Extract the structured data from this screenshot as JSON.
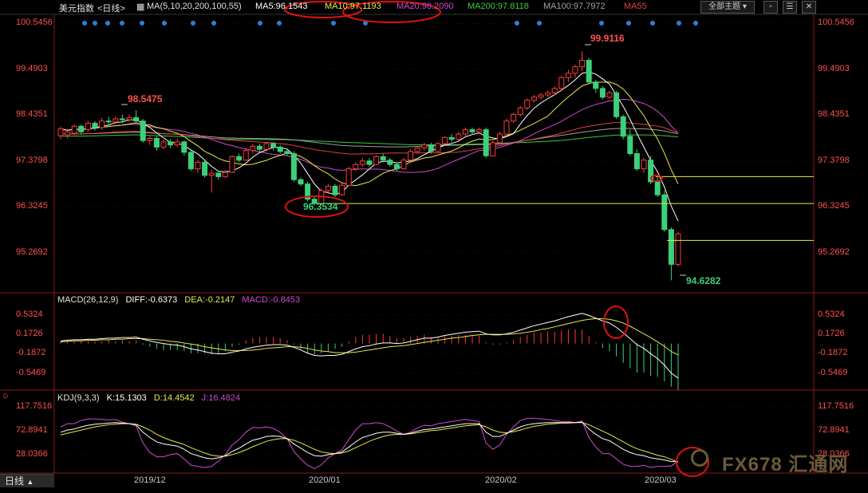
{
  "toolbar": {
    "symbol": "美元指数",
    "period": "<日线>",
    "ma_prefix": "MA(5,10,20,200,100,55)",
    "ma5": "MA5:96.1543",
    "ma10": "MA10:97.1193",
    "ma20": "MA20:98.2090",
    "ma200": "MA200:97.8118",
    "ma100": "MA100:97.7972",
    "ma55": "MA55",
    "dropdown": "全部主题",
    "colors": {
      "ma5": "#ffffff",
      "ma10": "#e8e84a",
      "ma20": "#d04ad0",
      "ma200": "#3cc83c",
      "ma100": "#a0a0a0",
      "ma55": "#e04040"
    }
  },
  "macd_header": {
    "name": "MACD(26,12,9)",
    "diff": "DIFF:-0.6373",
    "dea": "DEA:-0.2147",
    "macd": "MACD:-0.8453"
  },
  "kdj_header": {
    "name": "KDJ(9,3,3)",
    "k": "K:15.1303",
    "d": "D:14.4542",
    "j": "J:16.4824"
  },
  "price_axis": [
    "100.5456",
    "99.4903",
    "98.4351",
    "97.3798",
    "96.3245",
    "95.2692"
  ],
  "macd_axis": [
    "0.5324",
    "0.1726",
    "-0.1872",
    "-0.5469"
  ],
  "kdj_axis": [
    "117.7516",
    "72.8941",
    "28.0366"
  ],
  "x_labels": [
    "2019/12",
    "2020/01",
    "2020/02",
    "2020/03"
  ],
  "annotations": {
    "high1": "98.5475",
    "low1": "96.3534",
    "high2": "99.9116",
    "low2": "94.6282"
  },
  "bottom_button": "日线",
  "watermark": "FX678 汇通网",
  "chart_data": {
    "type": "candlestick",
    "title": "美元指数",
    "ylim": [
      94.4,
      100.72
    ],
    "candles": [
      [
        97.96,
        98.12,
        97.88,
        98.18
      ],
      [
        97.98,
        98.05,
        97.9,
        98.12
      ],
      [
        98.02,
        98.18,
        97.98,
        98.22
      ],
      [
        98.18,
        98.05,
        97.98,
        98.22
      ],
      [
        98.1,
        98.25,
        98.05,
        98.3
      ],
      [
        98.25,
        98.15,
        98.08,
        98.3
      ],
      [
        98.15,
        98.3,
        98.1,
        98.38
      ],
      [
        98.3,
        98.28,
        98.2,
        98.4
      ],
      [
        98.28,
        98.35,
        98.22,
        98.4
      ],
      [
        98.35,
        98.33,
        98.25,
        98.45
      ],
      [
        98.33,
        98.38,
        98.28,
        98.45
      ],
      [
        98.38,
        98.3,
        98.25,
        98.55
      ],
      [
        98.3,
        97.85,
        97.8,
        98.35
      ],
      [
        97.85,
        97.9,
        97.75,
        97.95
      ],
      [
        97.9,
        97.7,
        97.62,
        97.95
      ],
      [
        97.7,
        97.82,
        97.65,
        97.88
      ],
      [
        97.82,
        97.75,
        97.68,
        97.88
      ],
      [
        97.75,
        97.82,
        97.7,
        97.9
      ],
      [
        97.82,
        97.58,
        97.5,
        97.85
      ],
      [
        97.58,
        97.2,
        97.15,
        97.62
      ],
      [
        97.2,
        97.35,
        97.1,
        97.4
      ],
      [
        97.35,
        97.05,
        97.0,
        97.4
      ],
      [
        97.05,
        97.1,
        96.65,
        97.18
      ],
      [
        97.1,
        97.02,
        96.95,
        97.15
      ],
      [
        97.02,
        97.12,
        96.98,
        97.18
      ],
      [
        97.12,
        97.48,
        97.1,
        97.52
      ],
      [
        97.48,
        97.4,
        97.35,
        97.55
      ],
      [
        97.4,
        97.62,
        97.38,
        97.68
      ],
      [
        97.62,
        97.72,
        97.55,
        97.78
      ],
      [
        97.72,
        97.65,
        97.6,
        97.78
      ],
      [
        97.65,
        97.78,
        97.6,
        97.82
      ],
      [
        97.78,
        97.7,
        97.62,
        97.82
      ],
      [
        97.7,
        97.6,
        97.55,
        97.75
      ],
      [
        97.6,
        97.55,
        97.5,
        97.65
      ],
      [
        97.55,
        96.95,
        96.9,
        97.6
      ],
      [
        96.95,
        96.85,
        96.8,
        97.0
      ],
      [
        96.85,
        96.5,
        96.45,
        96.9
      ],
      [
        96.5,
        96.4,
        96.35,
        96.55
      ],
      [
        96.4,
        96.7,
        96.36,
        96.75
      ],
      [
        96.7,
        96.8,
        96.62,
        96.85
      ],
      [
        96.8,
        96.6,
        96.55,
        96.85
      ],
      [
        96.6,
        96.82,
        96.58,
        96.9
      ],
      [
        96.82,
        97.2,
        96.8,
        97.25
      ],
      [
        97.2,
        97.3,
        97.15,
        97.35
      ],
      [
        97.3,
        97.38,
        97.25,
        97.45
      ],
      [
        97.38,
        97.3,
        97.25,
        97.45
      ],
      [
        97.3,
        97.48,
        97.28,
        97.52
      ],
      [
        97.48,
        97.4,
        97.35,
        97.55
      ],
      [
        97.4,
        97.3,
        97.25,
        97.45
      ],
      [
        97.3,
        97.2,
        97.15,
        97.35
      ],
      [
        97.2,
        97.4,
        97.18,
        97.45
      ],
      [
        97.4,
        97.6,
        97.38,
        97.65
      ],
      [
        97.6,
        97.68,
        97.55,
        97.72
      ],
      [
        97.68,
        97.75,
        97.62,
        97.8
      ],
      [
        97.75,
        97.6,
        97.55,
        97.8
      ],
      [
        97.6,
        97.78,
        97.58,
        97.82
      ],
      [
        97.78,
        97.92,
        97.75,
        97.95
      ],
      [
        97.92,
        97.88,
        97.82,
        98.0
      ],
      [
        97.88,
        98.0,
        97.85,
        98.05
      ],
      [
        98.0,
        98.1,
        97.95,
        98.15
      ],
      [
        98.1,
        98.05,
        97.98,
        98.15
      ],
      [
        98.05,
        98.1,
        98.0,
        98.15
      ],
      [
        98.1,
        97.5,
        97.45,
        98.15
      ],
      [
        97.5,
        97.8,
        97.48,
        97.85
      ],
      [
        97.8,
        98.0,
        97.75,
        98.05
      ],
      [
        98.0,
        98.3,
        97.95,
        98.35
      ],
      [
        98.3,
        98.45,
        98.25,
        98.5
      ],
      [
        98.45,
        98.6,
        98.4,
        98.65
      ],
      [
        98.6,
        98.78,
        98.55,
        98.82
      ],
      [
        98.78,
        98.85,
        98.72,
        98.9
      ],
      [
        98.85,
        98.9,
        98.8,
        98.95
      ],
      [
        98.9,
        98.95,
        98.85,
        99.0
      ],
      [
        98.95,
        99.05,
        98.9,
        99.1
      ],
      [
        99.05,
        99.3,
        99.0,
        99.35
      ],
      [
        99.3,
        99.4,
        99.2,
        99.48
      ],
      [
        99.4,
        99.55,
        99.3,
        99.6
      ],
      [
        99.55,
        99.7,
        99.45,
        99.91
      ],
      [
        99.7,
        99.2,
        99.15,
        99.75
      ],
      [
        99.2,
        99.05,
        98.95,
        99.25
      ],
      [
        99.05,
        98.85,
        98.8,
        99.1
      ],
      [
        98.85,
        98.95,
        98.8,
        99.0
      ],
      [
        98.95,
        98.4,
        98.35,
        99.0
      ],
      [
        98.4,
        97.95,
        97.88,
        98.45
      ],
      [
        97.95,
        97.55,
        97.5,
        98.1
      ],
      [
        97.55,
        97.2,
        97.15,
        97.65
      ],
      [
        97.2,
        97.4,
        97.1,
        97.45
      ],
      [
        97.4,
        96.9,
        96.85,
        97.5
      ],
      [
        96.9,
        96.6,
        96.55,
        97.0
      ],
      [
        96.6,
        95.8,
        95.75,
        96.7
      ],
      [
        95.8,
        95.0,
        94.63,
        95.85
      ],
      [
        95.0,
        95.7,
        94.95,
        95.75
      ]
    ],
    "macd_ylim": [
      -0.85,
      0.72
    ],
    "diff": [
      0.05,
      0.06,
      0.07,
      0.07,
      0.08,
      0.08,
      0.09,
      0.1,
      0.1,
      0.11,
      0.11,
      0.12,
      0.08,
      0.05,
      0.02,
      0.0,
      -0.02,
      -0.03,
      -0.06,
      -0.1,
      -0.12,
      -0.15,
      -0.18,
      -0.19,
      -0.19,
      -0.16,
      -0.14,
      -0.1,
      -0.07,
      -0.05,
      -0.03,
      -0.02,
      -0.02,
      -0.03,
      -0.07,
      -0.12,
      -0.18,
      -0.22,
      -0.23,
      -0.22,
      -0.22,
      -0.2,
      -0.15,
      -0.1,
      -0.06,
      -0.04,
      -0.01,
      0.01,
      0.01,
      0.0,
      0.01,
      0.04,
      0.07,
      0.1,
      0.1,
      0.12,
      0.15,
      0.17,
      0.19,
      0.21,
      0.22,
      0.23,
      0.18,
      0.16,
      0.16,
      0.18,
      0.21,
      0.25,
      0.29,
      0.33,
      0.36,
      0.39,
      0.42,
      0.46,
      0.5,
      0.53,
      0.56,
      0.52,
      0.47,
      0.42,
      0.38,
      0.3,
      0.2,
      0.09,
      -0.02,
      -0.09,
      -0.19,
      -0.28,
      -0.4,
      -0.55,
      -0.64
    ],
    "dea": [
      0.03,
      0.04,
      0.05,
      0.05,
      0.06,
      0.06,
      0.07,
      0.07,
      0.08,
      0.08,
      0.09,
      0.09,
      0.09,
      0.08,
      0.07,
      0.06,
      0.04,
      0.03,
      0.01,
      -0.01,
      -0.03,
      -0.06,
      -0.08,
      -0.1,
      -0.12,
      -0.13,
      -0.13,
      -0.13,
      -0.12,
      -0.11,
      -0.09,
      -0.08,
      -0.07,
      -0.06,
      -0.06,
      -0.07,
      -0.09,
      -0.12,
      -0.14,
      -0.15,
      -0.17,
      -0.17,
      -0.17,
      -0.16,
      -0.14,
      -0.12,
      -0.1,
      -0.08,
      -0.06,
      -0.05,
      -0.04,
      -0.02,
      0.0,
      0.02,
      0.04,
      0.06,
      0.08,
      0.1,
      0.11,
      0.13,
      0.15,
      0.16,
      0.17,
      0.17,
      0.17,
      0.17,
      0.18,
      0.19,
      0.21,
      0.23,
      0.26,
      0.28,
      0.31,
      0.34,
      0.37,
      0.4,
      0.43,
      0.45,
      0.46,
      0.46,
      0.45,
      0.42,
      0.38,
      0.32,
      0.25,
      0.18,
      0.11,
      0.03,
      -0.05,
      -0.15,
      -0.21
    ],
    "kdj_ylim": [
      -5,
      125
    ],
    "k": [
      70,
      74,
      76,
      80,
      83,
      85,
      86,
      87,
      88,
      87,
      86,
      84,
      70,
      60,
      52,
      48,
      46,
      44,
      38,
      30,
      26,
      22,
      20,
      22,
      26,
      34,
      40,
      48,
      55,
      58,
      62,
      63,
      62,
      58,
      48,
      40,
      32,
      26,
      25,
      28,
      30,
      33,
      42,
      52,
      60,
      64,
      68,
      70,
      70,
      68,
      66,
      68,
      72,
      75,
      76,
      78,
      80,
      82,
      84,
      86,
      86,
      86,
      70,
      62,
      62,
      68,
      74,
      80,
      84,
      86,
      87,
      88,
      88,
      88,
      88,
      88,
      89,
      76,
      66,
      58,
      54,
      46,
      38,
      32,
      28,
      26,
      22,
      20,
      18,
      15,
      15
    ],
    "d": [
      65,
      68,
      71,
      74,
      77,
      80,
      82,
      84,
      85,
      86,
      86,
      85,
      80,
      74,
      66,
      60,
      55,
      51,
      47,
      41,
      36,
      31,
      27,
      25,
      25,
      28,
      32,
      37,
      43,
      48,
      53,
      56,
      58,
      58,
      55,
      50,
      44,
      38,
      33,
      31,
      30,
      31,
      35,
      41,
      47,
      53,
      58,
      62,
      65,
      66,
      66,
      67,
      69,
      71,
      73,
      74,
      76,
      78,
      80,
      82,
      83,
      84,
      80,
      74,
      70,
      69,
      71,
      74,
      78,
      81,
      83,
      85,
      86,
      87,
      87,
      88,
      88,
      84,
      78,
      72,
      66,
      59,
      52,
      45,
      39,
      35,
      31,
      27,
      24,
      19,
      14
    ],
    "j": [
      80,
      86,
      86,
      92,
      95,
      95,
      94,
      93,
      94,
      89,
      86,
      82,
      50,
      32,
      24,
      24,
      28,
      30,
      20,
      8,
      6,
      4,
      6,
      16,
      28,
      46,
      56,
      70,
      79,
      78,
      80,
      77,
      70,
      58,
      34,
      20,
      8,
      2,
      9,
      22,
      30,
      37,
      56,
      74,
      86,
      86,
      88,
      86,
      80,
      72,
      66,
      70,
      78,
      83,
      82,
      86,
      88,
      90,
      92,
      94,
      92,
      90,
      50,
      38,
      46,
      66,
      80,
      92,
      96,
      96,
      95,
      94,
      92,
      90,
      90,
      88,
      91,
      60,
      42,
      30,
      30,
      20,
      10,
      6,
      6,
      8,
      4,
      6,
      6,
      7,
      16
    ]
  }
}
